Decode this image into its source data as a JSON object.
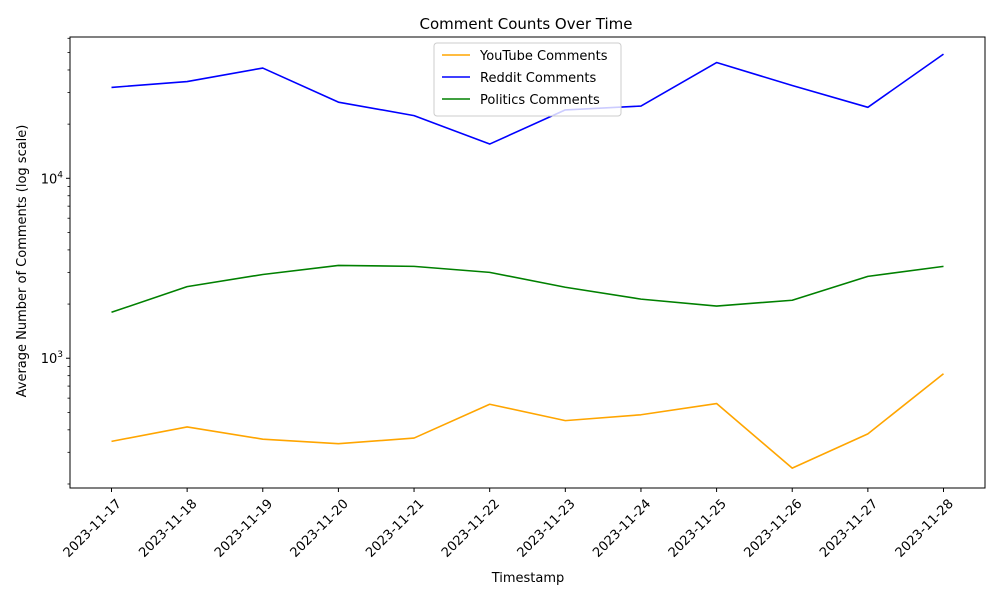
{
  "chart_data": {
    "type": "line",
    "title": "Comment Counts Over Time",
    "xlabel": "Timestamp",
    "ylabel": "Average Number of Comments (log scale)",
    "yscale": "log",
    "ylim": [
      190,
      61000
    ],
    "grid": false,
    "legend_position": "top-center",
    "categories": [
      "2023-11-17",
      "2023-11-18",
      "2023-11-19",
      "2023-11-20",
      "2023-11-21",
      "2023-11-22",
      "2023-11-23",
      "2023-11-24",
      "2023-11-25",
      "2023-11-26",
      "2023-11-27",
      "2023-11-28"
    ],
    "yticks": [
      {
        "value": 1000,
        "base": "10",
        "exp": "3"
      },
      {
        "value": 10000,
        "base": "10",
        "exp": "4"
      }
    ],
    "series": [
      {
        "name": "YouTube Comments",
        "color": "#ffa500",
        "values": [
          345,
          415,
          355,
          335,
          360,
          555,
          450,
          485,
          560,
          245,
          380,
          820
        ]
      },
      {
        "name": "Reddit Comments",
        "color": "#0000ff",
        "values": [
          32000,
          34500,
          41000,
          26500,
          22300,
          15500,
          24000,
          25200,
          44000,
          32800,
          24800,
          49000
        ]
      },
      {
        "name": "Politics Comments",
        "color": "#008000",
        "values": [
          1800,
          2500,
          2920,
          3280,
          3240,
          3000,
          2480,
          2130,
          1950,
          2100,
          2850,
          3240
        ]
      }
    ]
  }
}
